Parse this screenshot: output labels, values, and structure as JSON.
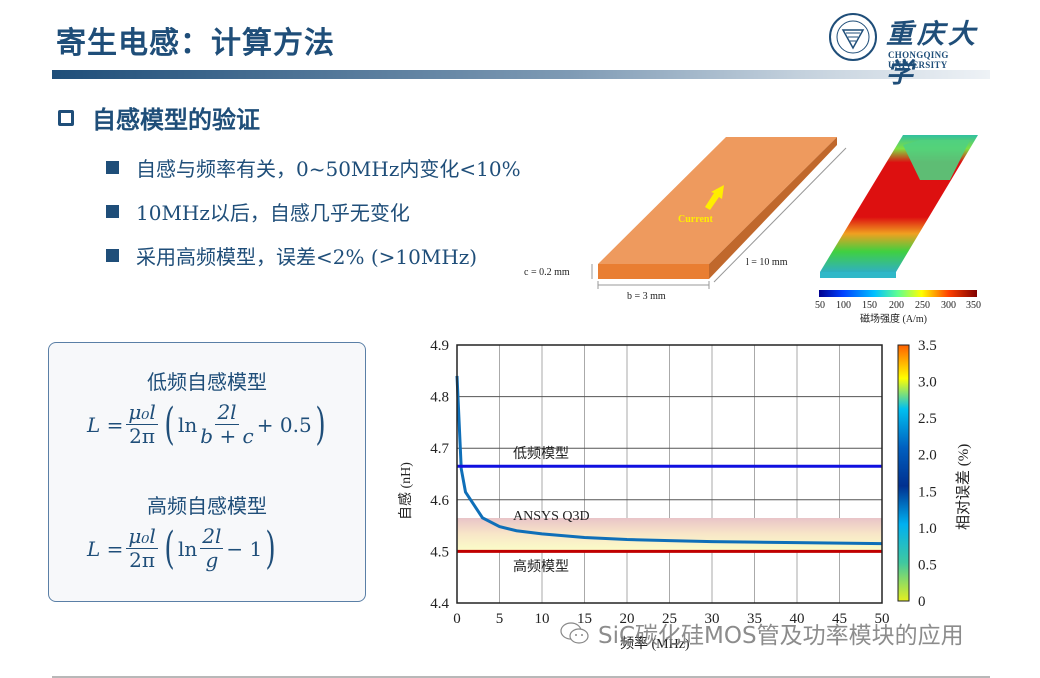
{
  "header": {
    "title": "寄生电感：计算方法",
    "logo": {
      "cn": "重庆大学",
      "en": "CHONGQING UNIVERSITY"
    },
    "accent": "#1f4e79"
  },
  "section": {
    "heading": "自感模型的验证",
    "bullets": [
      "自感与频率有关，0~50MHz内变化<10%",
      "10MHz以后，自感几乎无变化",
      "采用高频模型，误差<2% (>10MHz)"
    ]
  },
  "diagram": {
    "conductor": {
      "current_label": "Current",
      "c_label": "c = 0.2 mm",
      "b_label": "b = 3 mm",
      "l_label": "l = 10 mm",
      "color": "#ee9a5e"
    },
    "field_map": {
      "colorbar_ticks": [
        "50",
        "100",
        "150",
        "200",
        "250",
        "300",
        "350"
      ],
      "colorbar_label": "磁场强度 (A/m)"
    }
  },
  "formulas": {
    "low_freq": {
      "title": "低频自感模型",
      "lhs": "L =",
      "coef_num": "μ₀l",
      "coef_den": "2π",
      "ln": "ln",
      "arg_num": "2l",
      "arg_den": "b + c",
      "tail": "+ 0.5"
    },
    "high_freq": {
      "title": "高频自感模型",
      "lhs": "L =",
      "coef_num": "μ₀l",
      "coef_den": "2π",
      "ln": "ln",
      "arg_num": "2l",
      "arg_den": "g",
      "tail": "− 1"
    }
  },
  "chart_data": {
    "type": "line",
    "title": "",
    "xlabel": "频率 (MHz)",
    "ylabel": "自感 (nH)",
    "xlim": [
      0,
      50
    ],
    "ylim": [
      4.4,
      4.9
    ],
    "x_ticks": [
      "0",
      "5",
      "10",
      "15",
      "20",
      "25",
      "30",
      "35",
      "40",
      "45",
      "50"
    ],
    "y_ticks": [
      "4.4",
      "4.5",
      "4.6",
      "4.7",
      "4.8",
      "4.9"
    ],
    "grid": true,
    "series": [
      {
        "name": "ANSYS Q3D",
        "color": "#0f6fb8",
        "x": [
          0,
          0.5,
          1,
          2,
          3,
          5,
          7,
          10,
          15,
          20,
          25,
          30,
          35,
          40,
          45,
          50
        ],
        "values": [
          4.84,
          4.66,
          4.615,
          4.59,
          4.565,
          4.548,
          4.54,
          4.534,
          4.527,
          4.523,
          4.521,
          4.519,
          4.518,
          4.517,
          4.516,
          4.515
        ]
      },
      {
        "name": "低频模型",
        "color": "#1010e0",
        "x": [
          0,
          50
        ],
        "values": [
          4.665,
          4.665
        ]
      },
      {
        "name": "高频模型",
        "color": "#c00000",
        "x": [
          0,
          50
        ],
        "values": [
          4.5,
          4.5
        ]
      }
    ],
    "annotations": [
      "低频模型",
      "ANSYS Q3D",
      "高频模型"
    ],
    "error_band": {
      "from": 4.5,
      "to": 4.56
    },
    "colorbar": {
      "label": "相对误差 (%)",
      "ticks": [
        "0",
        "0.5",
        "1.0",
        "1.5",
        "2.0",
        "2.5",
        "3.0",
        "3.5"
      ],
      "range": [
        0,
        3.5
      ]
    }
  },
  "watermark": "SiC碳化硅MOS管及功率模块的应用"
}
